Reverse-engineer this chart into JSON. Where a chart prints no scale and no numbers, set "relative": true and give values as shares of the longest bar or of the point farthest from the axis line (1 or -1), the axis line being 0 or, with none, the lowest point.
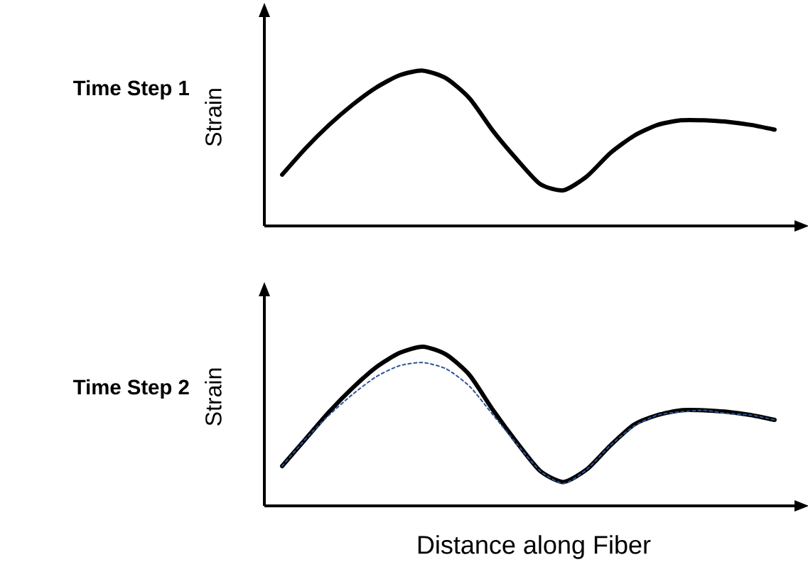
{
  "chart_data": [
    {
      "type": "line",
      "title": "Time Step 1",
      "ylabel": "Strain",
      "relative": true,
      "categories": [
        null,
        null,
        null,
        null,
        null,
        null,
        null,
        null,
        null,
        null,
        null,
        null,
        null,
        null,
        null,
        null,
        null,
        null,
        null,
        null,
        null,
        null
      ],
      "series": [
        {
          "color": "#000000",
          "line_style": "solid",
          "values": [
            0.33,
            0.5,
            0.65,
            0.78,
            0.89,
            0.97,
            1.0,
            0.95,
            0.82,
            0.61,
            0.43,
            0.27,
            0.23,
            0.32,
            0.47,
            0.58,
            0.65,
            0.68,
            0.68,
            0.67,
            0.65,
            0.62
          ]
        }
      ]
    },
    {
      "type": "line",
      "title": "Time Step 2",
      "ylabel": "Strain",
      "xlabel": "Distance along Fiber",
      "relative": true,
      "categories": [
        null,
        null,
        null,
        null,
        null,
        null,
        null,
        null,
        null,
        null,
        null,
        null,
        null,
        null,
        null,
        null,
        null,
        null,
        null,
        null,
        null,
        null
      ],
      "series": [
        {
          "color": "#000000",
          "line_style": "solid",
          "values": [
            0.25,
            0.42,
            0.59,
            0.74,
            0.87,
            0.96,
            1.0,
            0.95,
            0.82,
            0.6,
            0.4,
            0.22,
            0.15,
            0.23,
            0.38,
            0.51,
            0.57,
            0.6,
            0.6,
            0.59,
            0.57,
            0.54
          ]
        },
        {
          "color": "#2f5597",
          "line_style": "dashed",
          "values": [
            0.25,
            0.42,
            0.57,
            0.7,
            0.81,
            0.88,
            0.9,
            0.86,
            0.75,
            0.57,
            0.39,
            0.22,
            0.14,
            0.23,
            0.38,
            0.5,
            0.57,
            0.59,
            0.6,
            0.58,
            0.57,
            0.54
          ]
        }
      ]
    }
  ]
}
